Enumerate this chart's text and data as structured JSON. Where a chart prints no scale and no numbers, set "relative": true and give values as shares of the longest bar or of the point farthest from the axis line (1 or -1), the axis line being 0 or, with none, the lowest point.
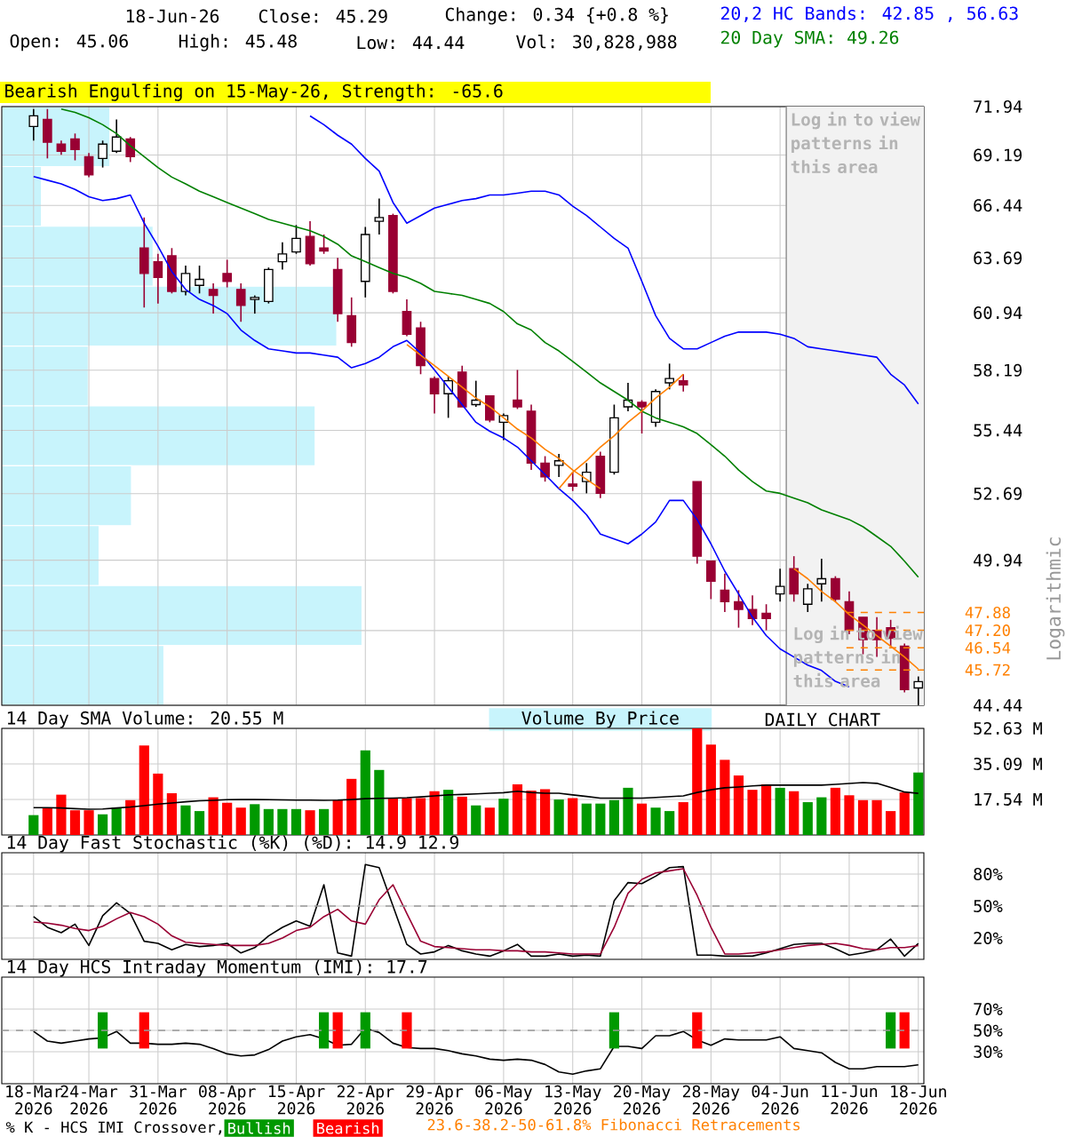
{
  "chart_data": [
    {
      "type": "candlestick",
      "categories": [
        "18-Mar 2026",
        null,
        null,
        null,
        "24-Mar 2026",
        null,
        null,
        null,
        null,
        "31-Mar 2026",
        null,
        null,
        null,
        null,
        "08-Apr 2026",
        null,
        null,
        null,
        null,
        "15-Apr 2026",
        null,
        null,
        null,
        null,
        "22-Apr 2026",
        null,
        null,
        null,
        null,
        "29-Apr 2026",
        null,
        null,
        null,
        null,
        "06-May 2026",
        null,
        null,
        null,
        null,
        "13-May 2026",
        null,
        null,
        null,
        null,
        "20-May 2026",
        null,
        null,
        null,
        null,
        "28-May 2026",
        null,
        null,
        null,
        null,
        "04-Jun 2026",
        null,
        null,
        null,
        null,
        "11-Jun 2026",
        null,
        null,
        null,
        null,
        "18-Jun 2026"
      ],
      "ohlc": [
        [
          70.8,
          71.8,
          70.0,
          71.4
        ],
        [
          71.2,
          71.8,
          69.0,
          69.9
        ],
        [
          69.8,
          70.0,
          69.2,
          69.4
        ],
        [
          70.1,
          70.4,
          68.9,
          69.5
        ],
        [
          69.1,
          69.3,
          67.97,
          68.1
        ],
        [
          69.0,
          70.0,
          68.5,
          69.8
        ],
        [
          69.4,
          71.2,
          69.3,
          70.2
        ],
        [
          70.1,
          70.2,
          68.8,
          69.1
        ],
        [
          64.2,
          65.8,
          61.2,
          62.9
        ],
        [
          63.5,
          63.9,
          61.4,
          62.7
        ],
        [
          63.8,
          64.2,
          61.9,
          62.0
        ],
        [
          62.0,
          63.3,
          61.8,
          62.9
        ],
        [
          62.3,
          63.3,
          61.9,
          62.6
        ],
        [
          62.1,
          62.4,
          60.9,
          61.8
        ],
        [
          62.9,
          63.6,
          62.2,
          62.5
        ],
        [
          62.1,
          62.4,
          60.5,
          61.3
        ],
        [
          61.6,
          61.8,
          60.9,
          61.7
        ],
        [
          61.5,
          63.2,
          61.4,
          63.1
        ],
        [
          63.5,
          64.5,
          63.1,
          63.9
        ],
        [
          64.0,
          65.4,
          63.9,
          64.7
        ],
        [
          64.8,
          65.6,
          63.3,
          63.4
        ],
        [
          64.2,
          64.9,
          63.9,
          64.05
        ],
        [
          63.1,
          63.7,
          60.5,
          60.9
        ],
        [
          60.8,
          61.7,
          59.3,
          59.5
        ],
        [
          62.5,
          65.3,
          61.7,
          64.9
        ],
        [
          65.6,
          66.8,
          64.9,
          65.8
        ],
        [
          65.9,
          66.0,
          61.9,
          62.0
        ],
        [
          61.0,
          61.6,
          59.8,
          59.9
        ],
        [
          60.2,
          60.5,
          58.0,
          58.4
        ],
        [
          57.8,
          57.9,
          56.2,
          57.1
        ],
        [
          57.1,
          57.9,
          56.0,
          57.7
        ],
        [
          58.1,
          58.4,
          56.5,
          56.5
        ],
        [
          56.6,
          57.7,
          56.5,
          56.8
        ],
        [
          57.0,
          57.0,
          55.8,
          55.9
        ],
        [
          55.8,
          56.2,
          55.0,
          56.1
        ],
        [
          56.8,
          58.2,
          56.4,
          56.5
        ],
        [
          56.3,
          56.6,
          53.7,
          54.0
        ],
        [
          54.0,
          54.3,
          53.2,
          53.4
        ],
        [
          53.9,
          54.4,
          53.4,
          54.1
        ],
        [
          53.1,
          53.6,
          52.8,
          53.0
        ],
        [
          53.2,
          54.0,
          52.7,
          53.6
        ],
        [
          54.3,
          54.5,
          52.5,
          52.7
        ],
        [
          53.6,
          56.6,
          53.5,
          56.0
        ],
        [
          56.5,
          57.6,
          56.3,
          56.8
        ],
        [
          56.7,
          56.8,
          55.3,
          56.5
        ],
        [
          55.8,
          57.3,
          55.6,
          57.2
        ],
        [
          57.6,
          58.5,
          57.3,
          57.8
        ],
        [
          57.7,
          58.0,
          57.2,
          57.5
        ],
        [
          53.2,
          53.2,
          49.8,
          50.1
        ],
        [
          49.9,
          49.9,
          48.4,
          49.1
        ],
        [
          48.75,
          49.4,
          47.9,
          48.3
        ],
        [
          48.3,
          48.75,
          47.3,
          48.0
        ],
        [
          48.0,
          48.55,
          47.4,
          47.65
        ],
        [
          47.85,
          48.2,
          47.2,
          47.65
        ],
        [
          48.6,
          49.6,
          48.3,
          48.9
        ],
        [
          49.6,
          50.1,
          48.3,
          48.6
        ],
        [
          48.2,
          49.0,
          47.9,
          48.8
        ],
        [
          49.0,
          50.0,
          48.3,
          49.2
        ],
        [
          49.2,
          49.3,
          48.3,
          48.4
        ],
        [
          48.3,
          48.7,
          47.05,
          47.2
        ],
        [
          47.7,
          47.7,
          46.3,
          46.85
        ],
        [
          47.2,
          47.7,
          46.2,
          46.85
        ],
        [
          47.3,
          47.6,
          46.6,
          46.9
        ],
        [
          46.6,
          46.7,
          44.9,
          45.0
        ],
        [
          45.06,
          45.48,
          44.44,
          45.29
        ]
      ],
      "series": [
        {
          "type": "line",
          "color": "#0000ff",
          "values": [
            null,
            null,
            null,
            null,
            null,
            null,
            null,
            null,
            null,
            null,
            null,
            null,
            null,
            null,
            null,
            null,
            null,
            null,
            null,
            null,
            71.4,
            70.9,
            70.3,
            69.8,
            69.0,
            68.3,
            66.6,
            65.5,
            65.9,
            66.3,
            66.5,
            66.7,
            66.8,
            67.0,
            67.0,
            67.1,
            67.2,
            67.2,
            67.0,
            66.4,
            65.9,
            65.3,
            64.7,
            64.2,
            62.5,
            60.8,
            59.7,
            59.2,
            59.2,
            59.5,
            59.8,
            60.0,
            60.0,
            60.0,
            59.9,
            59.7,
            59.3,
            59.2,
            59.1,
            59.0,
            58.9,
            58.8,
            58.0,
            57.5,
            56.63
          ]
        },
        {
          "type": "line",
          "color": "#0000ff",
          "values": [
            68.0,
            67.8,
            67.6,
            67.3,
            66.9,
            66.7,
            66.8,
            67.0,
            65.5,
            64.3,
            63.0,
            62.1,
            61.6,
            61.3,
            60.9,
            60.1,
            59.6,
            59.2,
            59.1,
            59.0,
            59.0,
            58.9,
            58.8,
            58.3,
            58.5,
            58.8,
            59.3,
            59.6,
            59.0,
            58.2,
            57.4,
            56.6,
            55.8,
            55.4,
            55.1,
            54.7,
            54.1,
            53.5,
            52.9,
            52.4,
            51.8,
            51.0,
            50.8,
            50.6,
            51.0,
            51.5,
            52.4,
            52.4,
            51.6,
            50.6,
            49.5,
            48.6,
            47.7,
            47.0,
            46.5,
            46.2,
            45.9,
            45.7,
            45.3,
            45.1,
            null,
            null,
            null,
            null,
            null
          ]
        },
        {
          "type": "line",
          "color": "#008000",
          "values": [
            null,
            null,
            71.8,
            71.6,
            71.3,
            70.9,
            70.4,
            69.7,
            69.1,
            68.5,
            67.97,
            67.6,
            67.2,
            66.9,
            66.6,
            66.3,
            66.0,
            65.7,
            65.5,
            65.3,
            65.1,
            64.8,
            64.4,
            63.8,
            63.5,
            63.2,
            62.9,
            62.7,
            62.4,
            62.0,
            61.9,
            61.8,
            61.6,
            61.4,
            61.0,
            60.4,
            60.1,
            59.5,
            59.1,
            58.6,
            58.1,
            57.6,
            57.2,
            56.8,
            56.3,
            56.0,
            55.8,
            55.6,
            55.3,
            54.8,
            54.3,
            53.7,
            53.2,
            52.8,
            52.7,
            52.5,
            52.3,
            52.0,
            51.8,
            51.6,
            51.3,
            50.9,
            50.5,
            49.9,
            49.26
          ]
        },
        {
          "type": "line",
          "color": "#ff8000",
          "values": [
            null,
            null,
            null,
            null,
            null,
            null,
            null,
            null,
            null,
            null,
            null,
            null,
            null,
            null,
            null,
            null,
            null,
            null,
            null,
            null,
            null,
            null,
            null,
            null,
            null,
            null,
            null,
            59.4,
            58.9,
            58.4,
            57.9,
            57.4,
            56.9,
            56.5,
            56.0,
            55.5,
            55.1,
            54.6,
            54.2,
            53.7,
            53.3,
            52.9,
            null,
            null,
            null,
            null,
            null,
            null,
            null,
            null,
            null,
            null,
            null,
            null,
            null,
            null,
            null,
            null,
            null,
            null,
            null,
            null,
            null,
            null,
            null
          ]
        },
        {
          "type": "line",
          "color": "#ff8000",
          "values": [
            null,
            null,
            null,
            null,
            null,
            null,
            null,
            null,
            null,
            null,
            null,
            null,
            null,
            null,
            null,
            null,
            null,
            null,
            null,
            null,
            null,
            null,
            null,
            null,
            null,
            null,
            null,
            null,
            null,
            null,
            null,
            null,
            null,
            null,
            null,
            null,
            null,
            null,
            52.9,
            53.6,
            54.1,
            54.7,
            55.2,
            55.8,
            56.3,
            56.9,
            57.4,
            58.0,
            null,
            null,
            null,
            null,
            null,
            null,
            null,
            null,
            null,
            null,
            null,
            null,
            null,
            null,
            null,
            null,
            null
          ]
        },
        {
          "type": "line",
          "color": "#ff8000",
          "values": [
            null,
            null,
            null,
            null,
            null,
            null,
            null,
            null,
            null,
            null,
            null,
            null,
            null,
            null,
            null,
            null,
            null,
            null,
            null,
            null,
            null,
            null,
            null,
            null,
            null,
            null,
            null,
            null,
            null,
            null,
            null,
            null,
            null,
            null,
            null,
            null,
            null,
            null,
            null,
            null,
            null,
            null,
            null,
            null,
            null,
            null,
            null,
            null,
            null,
            null,
            null,
            null,
            null,
            null,
            null,
            49.6,
            49.2,
            48.7,
            48.3,
            47.8,
            47.4,
            47.0,
            46.6,
            46.2,
            45.75
          ]
        }
      ],
      "ylim": [
        44.44,
        71.94
      ],
      "yticks": [
        71.94,
        69.19,
        66.44,
        63.69,
        60.94,
        58.19,
        55.44,
        52.69,
        49.94,
        {
          "value": 47.19,
          "label": null
        },
        44.44
      ],
      "log": "y",
      "ylabel": "Logarithmic",
      "grid": true,
      "tick_labels": "y",
      "ref_lines": [
        {
          "axis": "y",
          "value": 47.88,
          "label": "47.88",
          "color": "#ff8000",
          "line_style": "dashed"
        },
        {
          "axis": "y",
          "value": 47.2,
          "label": "47.20",
          "color": "#ff8000",
          "line_style": "dashed"
        },
        {
          "axis": "y",
          "value": 46.54,
          "label": "46.54",
          "color": "#ff8000",
          "line_style": "dashed"
        },
        {
          "axis": "y",
          "value": 45.72,
          "label": "45.72",
          "color": "#ff8000",
          "line_style": "dashed"
        }
      ],
      "bands": [
        {
          "axis": "x",
          "from": "04-Jun 2026",
          "to": "18-Jun 2026",
          "label": "Log in to view patterns in this area",
          "color": "#f2f2f2"
        }
      ],
      "annotations": [
        "18-Jun-26",
        "Close: 45.29",
        "Change: 0.34 {+0.8 %}",
        "Open: 45.06",
        "High: 45.48",
        "Low: 44.44",
        "Vol: 30,828,988",
        "20,2 HC Bands: 42.85 , 56.63",
        "20 Day SMA: 49.26",
        "Bearish Engulfing on 15-May-26, Strength: -65.6",
        "Log in to view patterns in this area",
        "23.6-38.2-50-61.8% Fibonacci Retracements"
      ]
    },
    {
      "type": "bar",
      "orientation": "horizontal",
      "relative": true,
      "legend": "bottom",
      "categories": [
        null,
        null,
        null,
        null,
        null,
        null,
        null,
        null,
        null,
        null
      ],
      "series": [
        {
          "name": "Volume By Price",
          "color": "#c8f4fc",
          "values": [
            0.3,
            0.11,
            0.42,
            0.93,
            0.24,
            0.87,
            0.36,
            0.27,
            1,
            0.45
          ]
        }
      ]
    },
    {
      "type": "bar",
      "title": "14 Day SMA Volume: 20.55 M",
      "categories": [
        "18-Mar 2026",
        null,
        null,
        null,
        "24-Mar 2026",
        null,
        null,
        null,
        null,
        "31-Mar 2026",
        null,
        null,
        null,
        null,
        "08-Apr 2026",
        null,
        null,
        null,
        null,
        "15-Apr 2026",
        null,
        null,
        null,
        null,
        "22-Apr 2026",
        null,
        null,
        null,
        null,
        "29-Apr 2026",
        null,
        null,
        null,
        null,
        "06-May 2026",
        null,
        null,
        null,
        null,
        "13-May 2026",
        null,
        null,
        null,
        null,
        "20-May 2026",
        null,
        null,
        null,
        null,
        "28-May 2026",
        null,
        null,
        null,
        null,
        "04-Jun 2026",
        null,
        null,
        null,
        null,
        "11-Jun 2026",
        null,
        null,
        null,
        null,
        "18-Jun 2026"
      ],
      "series": [
        {
          "type": "bar",
          "values": [
            9.8,
            13.5,
            19.9,
            12.2,
            12.2,
            10.2,
            13.5,
            17.2,
            44.2,
            30.3,
            20.6,
            14.6,
            11.8,
            18.6,
            15.9,
            13.5,
            15.2,
            12.8,
            12.8,
            12.8,
            12.2,
            12.8,
            17.2,
            27.7,
            41.8,
            32.1,
            18.2,
            18.2,
            18.2,
            21.6,
            22.3,
            18.9,
            14.6,
            13.5,
            17.9,
            25.0,
            21.9,
            22.6,
            17.5,
            18.2,
            15.5,
            15.5,
            17.2,
            23.3,
            15.5,
            13.5,
            11.8,
            16.2,
            52.6,
            44.6,
            37.1,
            29.4,
            22.3,
            25.0,
            23.3,
            21.6,
            16.2,
            18.6,
            23.3,
            19.6,
            17.2,
            17.2,
            11.8,
            21.0,
            30.83
          ],
          "colors": [
            "#009900",
            "#ff0000",
            "#ff0000",
            "#ff0000",
            "#ff0000",
            "#009900",
            "#009900",
            "#ff0000",
            "#ff0000",
            "#ff0000",
            "#ff0000",
            "#009900",
            "#009900",
            "#ff0000",
            "#ff0000",
            "#ff0000",
            "#009900",
            "#009900",
            "#009900",
            "#009900",
            "#ff0000",
            "#009900",
            "#ff0000",
            "#ff0000",
            "#009900",
            "#009900",
            "#ff0000",
            "#ff0000",
            "#ff0000",
            "#ff0000",
            "#009900",
            "#ff0000",
            "#009900",
            "#ff0000",
            "#009900",
            "#ff0000",
            "#ff0000",
            "#ff0000",
            "#009900",
            "#ff0000",
            "#009900",
            "#009900",
            "#009900",
            "#009900",
            "#ff0000",
            "#009900",
            "#009900",
            "#ff0000",
            "#ff0000",
            "#ff0000",
            "#ff0000",
            "#ff0000",
            "#ff0000",
            "#ff0000",
            "#009900",
            "#ff0000",
            "#009900",
            "#009900",
            "#ff0000",
            "#ff0000",
            "#ff0000",
            "#ff0000",
            "#ff0000",
            "#ff0000",
            "#009900"
          ]
        },
        {
          "type": "line",
          "color": "#000000",
          "values": [
            13.5,
            13.5,
            13.3,
            13.0,
            12.7,
            12.8,
            13.3,
            13.8,
            14.5,
            15.2,
            15.8,
            16.4,
            16.9,
            17.1,
            17.4,
            17.5,
            17.5,
            17.4,
            17.3,
            17.2,
            17.2,
            17.1,
            17.2,
            17.5,
            17.9,
            18.1,
            18.2,
            18.4,
            18.8,
            19.3,
            19.8,
            20.0,
            20.3,
            20.6,
            20.9,
            21.6,
            21.0,
            20.6,
            20.6,
            19.8,
            19.0,
            18.2,
            18.2,
            18.2,
            18.2,
            18.5,
            18.9,
            19.3,
            21.0,
            22.3,
            23.3,
            23.7,
            24.2,
            24.6,
            24.6,
            24.6,
            24.6,
            24.6,
            25.0,
            25.4,
            25.9,
            25.5,
            23.5,
            21.2,
            20.55
          ]
        }
      ],
      "ylim": [
        0,
        52.63
      ],
      "yticks": [
        {
          "value": 17.54,
          "label": "17.54 M"
        },
        {
          "value": 35.09,
          "label": "35.09 M"
        },
        {
          "value": 52.63,
          "label": "52.63 M"
        }
      ],
      "grid": true,
      "tick_labels": "y",
      "annotations": [
        "DAILY CHART"
      ]
    },
    {
      "type": "line",
      "title": "14 Day Fast Stochastic (%K) (%D): 14.9  12.9",
      "categories": [
        "18-Mar 2026",
        null,
        null,
        null,
        "24-Mar 2026",
        null,
        null,
        null,
        null,
        "31-Mar 2026",
        null,
        null,
        null,
        null,
        "08-Apr 2026",
        null,
        null,
        null,
        null,
        "15-Apr 2026",
        null,
        null,
        null,
        null,
        "22-Apr 2026",
        null,
        null,
        null,
        null,
        "29-Apr 2026",
        null,
        null,
        null,
        null,
        "06-May 2026",
        null,
        null,
        null,
        null,
        "13-May 2026",
        null,
        null,
        null,
        null,
        "20-May 2026",
        null,
        null,
        null,
        null,
        "28-May 2026",
        null,
        null,
        null,
        null,
        "04-Jun 2026",
        null,
        null,
        null,
        null,
        "11-Jun 2026",
        null,
        null,
        null,
        null,
        "18-Jun 2026"
      ],
      "series": [
        {
          "color": "#000000",
          "values": [
            40,
            30,
            25,
            33,
            13,
            41,
            53,
            43,
            17,
            15,
            9,
            14,
            12,
            13,
            15,
            6,
            11,
            22,
            30,
            36,
            31,
            70,
            6,
            3,
            89,
            86,
            50,
            14,
            5,
            7,
            13,
            8,
            5,
            3,
            8,
            14,
            3,
            3,
            5,
            3,
            4,
            3,
            55,
            72,
            71,
            78,
            86,
            87,
            4,
            4,
            3,
            3,
            3,
            6,
            10,
            14,
            15,
            15,
            10,
            4,
            6,
            9,
            19,
            3,
            14.9
          ]
        },
        {
          "color": "#990033",
          "values": [
            35,
            34,
            32,
            29,
            27,
            31,
            38,
            44,
            40,
            33,
            22,
            16,
            15,
            14,
            13,
            13,
            13,
            15,
            20,
            27,
            30,
            40,
            47,
            36,
            33,
            56,
            70,
            43,
            17,
            12,
            11,
            10,
            9,
            9,
            8,
            8,
            7,
            7,
            6,
            5,
            5,
            5,
            30,
            62,
            75,
            81,
            83,
            85,
            60,
            30,
            5,
            5,
            6,
            7,
            9,
            11,
            13,
            14,
            15,
            13,
            10,
            9,
            11,
            11,
            12.9
          ]
        }
      ],
      "ylim": [
        0,
        100
      ],
      "yticks": [
        {
          "value": 20,
          "label": "20%"
        },
        {
          "value": 50,
          "label": "50%"
        },
        {
          "value": 80,
          "label": "80%"
        }
      ],
      "grid": true,
      "tick_labels": "y",
      "ref_lines": [
        {
          "axis": "y",
          "value": 50,
          "color": "#999999",
          "line_style": "dashed"
        }
      ]
    },
    {
      "type": "line",
      "title": "14 Day HCS Intraday Momentum (IMI): 17.7",
      "categories": [
        "18-Mar 2026",
        null,
        null,
        null,
        "24-Mar 2026",
        null,
        null,
        null,
        null,
        "31-Mar 2026",
        null,
        null,
        null,
        null,
        "08-Apr 2026",
        null,
        null,
        null,
        null,
        "15-Apr 2026",
        null,
        null,
        null,
        null,
        "22-Apr 2026",
        null,
        null,
        null,
        null,
        "29-Apr 2026",
        null,
        null,
        null,
        null,
        "06-May 2026",
        null,
        null,
        null,
        null,
        "13-May 2026",
        null,
        null,
        null,
        null,
        "20-May 2026",
        null,
        null,
        null,
        null,
        "28-May 2026",
        null,
        null,
        null,
        null,
        "04-Jun 2026",
        null,
        null,
        null,
        null,
        "11-Jun 2026",
        null,
        null,
        null,
        null,
        "18-Jun 2026"
      ],
      "series": [
        {
          "type": "line",
          "color": "#000000",
          "values": [
            49,
            40,
            38,
            40,
            42,
            43,
            49,
            38,
            38,
            37,
            37,
            38,
            37,
            33,
            28,
            26,
            27,
            32,
            40,
            44,
            46,
            42,
            36,
            37,
            52,
            48,
            38,
            34,
            33,
            33,
            31,
            28,
            26,
            23,
            22,
            23,
            22,
            18,
            11,
            9,
            12,
            14,
            35,
            35,
            33,
            45,
            45,
            49,
            41,
            36,
            42,
            41,
            41,
            41,
            44,
            33,
            31,
            29,
            20,
            14,
            14,
            16,
            16,
            16,
            17.7
          ]
        },
        {
          "type": "bar",
          "name": "Bullish",
          "color": "#009900",
          "values": [
            null,
            null,
            null,
            null,
            null,
            34,
            null,
            null,
            null,
            null,
            null,
            null,
            null,
            null,
            null,
            null,
            null,
            null,
            null,
            null,
            null,
            34,
            null,
            null,
            34,
            null,
            null,
            null,
            null,
            null,
            null,
            null,
            null,
            null,
            null,
            null,
            null,
            null,
            null,
            null,
            null,
            null,
            34,
            null,
            null,
            null,
            null,
            null,
            null,
            null,
            null,
            null,
            null,
            null,
            null,
            null,
            null,
            null,
            null,
            null,
            null,
            null,
            34,
            null,
            null
          ],
          "base": [
            null,
            null,
            null,
            null,
            null,
            33,
            null,
            null,
            null,
            null,
            null,
            null,
            null,
            null,
            null,
            null,
            null,
            null,
            null,
            null,
            null,
            33,
            null,
            null,
            33,
            null,
            null,
            null,
            null,
            null,
            null,
            null,
            null,
            null,
            null,
            null,
            null,
            null,
            null,
            null,
            null,
            null,
            33,
            null,
            null,
            null,
            null,
            null,
            null,
            null,
            null,
            null,
            null,
            null,
            null,
            null,
            null,
            null,
            null,
            null,
            null,
            null,
            33,
            null,
            null
          ]
        },
        {
          "type": "bar",
          "name": "Bearish",
          "color": "#ff0000",
          "values": [
            null,
            null,
            null,
            null,
            null,
            null,
            null,
            null,
            34,
            null,
            null,
            null,
            null,
            null,
            null,
            null,
            null,
            null,
            null,
            null,
            null,
            null,
            34,
            null,
            null,
            null,
            null,
            34,
            null,
            null,
            null,
            null,
            null,
            null,
            null,
            null,
            null,
            null,
            null,
            null,
            null,
            null,
            null,
            null,
            null,
            null,
            null,
            null,
            34,
            null,
            null,
            null,
            null,
            null,
            null,
            null,
            null,
            null,
            null,
            null,
            null,
            null,
            null,
            34,
            null
          ],
          "base": [
            null,
            null,
            null,
            null,
            null,
            null,
            null,
            null,
            33,
            null,
            null,
            null,
            null,
            null,
            null,
            null,
            null,
            null,
            null,
            null,
            null,
            null,
            33,
            null,
            null,
            null,
            null,
            33,
            null,
            null,
            null,
            null,
            null,
            null,
            null,
            null,
            null,
            null,
            null,
            null,
            null,
            null,
            null,
            null,
            null,
            null,
            null,
            null,
            33,
            null,
            null,
            null,
            null,
            null,
            null,
            null,
            null,
            null,
            null,
            null,
            null,
            null,
            null,
            33,
            null
          ]
        }
      ],
      "ylim": [
        0,
        100
      ],
      "yticks": [
        {
          "value": 30,
          "label": "30%"
        },
        {
          "value": 50,
          "label": "50%"
        },
        {
          "value": 70,
          "label": "70%"
        }
      ],
      "grid": true,
      "ref_lines": [
        {
          "axis": "y",
          "value": 50,
          "color": "#999999",
          "line_style": "dashed"
        }
      ],
      "legend": "bottom",
      "legend_title": "% K - HCS IMI Crossover,"
    }
  ]
}
